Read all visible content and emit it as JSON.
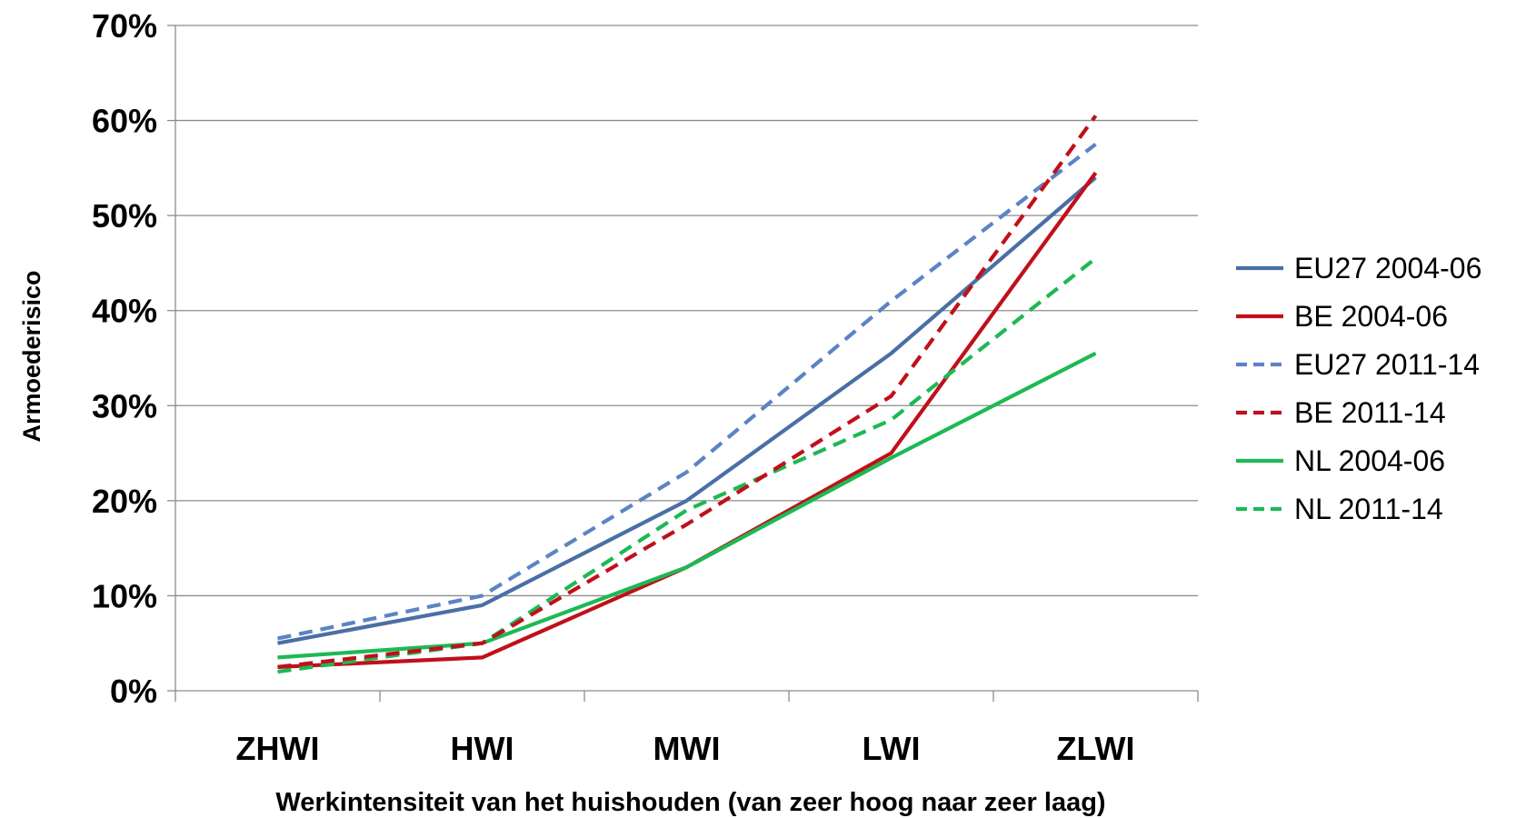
{
  "chart_data": {
    "type": "line",
    "title": "",
    "xlabel": "Werkintensiteit van het huishouden (van zeer hoog naar zeer laag)",
    "ylabel": "Armoederisico",
    "categories": [
      "ZHWI",
      "HWI",
      "MWI",
      "LWI",
      "ZLWI"
    ],
    "ylim": [
      0,
      70
    ],
    "yticks": [
      "0%",
      "10%",
      "20%",
      "30%",
      "40%",
      "50%",
      "60%",
      "70%"
    ],
    "grid": true,
    "legend_position": "right",
    "series": [
      {
        "name": "EU27 2004-06",
        "values": [
          5.0,
          9.0,
          20.0,
          35.5,
          54.0
        ],
        "color": "#4A6FA5",
        "dash": "solid"
      },
      {
        "name": "BE 2004-06",
        "values": [
          2.5,
          3.5,
          13.0,
          25.0,
          54.5
        ],
        "color": "#C0101A",
        "dash": "solid"
      },
      {
        "name": "EU27 2011-14",
        "values": [
          5.5,
          10.0,
          23.0,
          41.0,
          57.5
        ],
        "color": "#5B84C4",
        "dash": "dashed"
      },
      {
        "name": "BE 2011-14",
        "values": [
          2.5,
          5.0,
          17.5,
          31.0,
          60.5
        ],
        "color": "#C0101A",
        "dash": "dashed"
      },
      {
        "name": "NL 2004-06",
        "values": [
          3.5,
          5.0,
          13.0,
          24.5,
          35.5
        ],
        "color": "#1DB954",
        "dash": "solid"
      },
      {
        "name": "NL 2011-14",
        "values": [
          2.0,
          5.0,
          19.0,
          28.5,
          45.5
        ],
        "color": "#1DB954",
        "dash": "dashed"
      }
    ]
  }
}
